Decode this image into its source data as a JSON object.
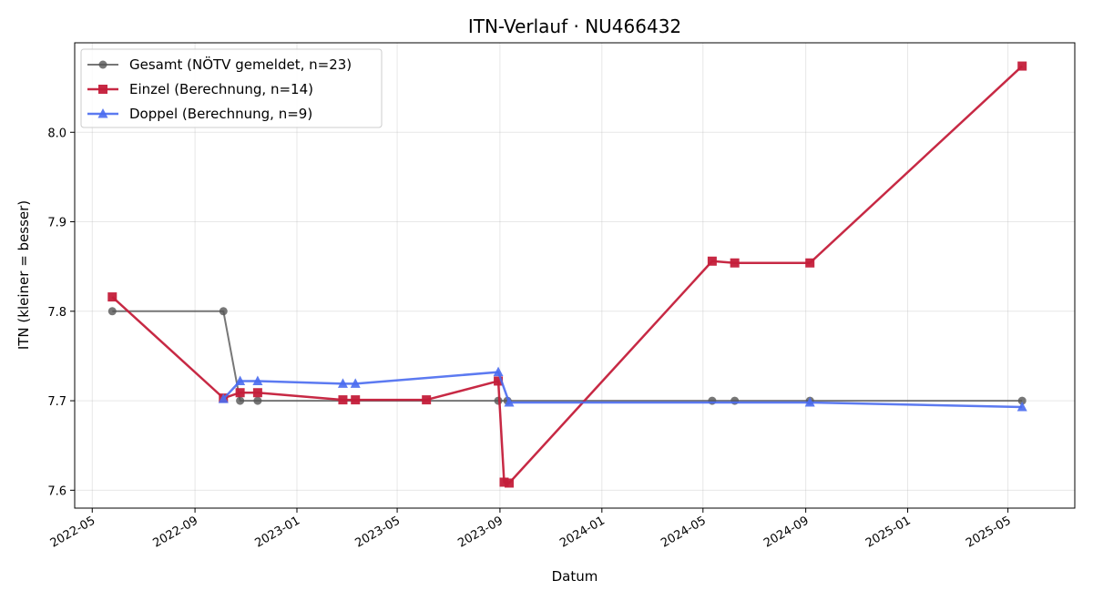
{
  "chart_data": {
    "type": "line",
    "title": "ITN-Verlauf · NU466432",
    "xlabel": "Datum",
    "ylabel": "ITN  (kleiner = besser)",
    "x_type": "date",
    "xlim": [
      "2022-04-10",
      "2025-07-20"
    ],
    "ylim": [
      7.58,
      8.1
    ],
    "x_ticks": [
      {
        "date": "2022-05-01",
        "label": "2022-05"
      },
      {
        "date": "2022-09-01",
        "label": "2022-09"
      },
      {
        "date": "2023-01-01",
        "label": "2023-01"
      },
      {
        "date": "2023-05-01",
        "label": "2023-05"
      },
      {
        "date": "2023-09-01",
        "label": "2023-09"
      },
      {
        "date": "2024-01-01",
        "label": "2024-01"
      },
      {
        "date": "2024-05-01",
        "label": "2024-05"
      },
      {
        "date": "2024-09-01",
        "label": "2024-09"
      },
      {
        "date": "2025-01-01",
        "label": "2025-01"
      },
      {
        "date": "2025-05-01",
        "label": "2025-05"
      }
    ],
    "y_ticks": [
      {
        "value": 7.6,
        "label": "7.6"
      },
      {
        "value": 7.7,
        "label": "7.7"
      },
      {
        "value": 7.8,
        "label": "7.8"
      },
      {
        "value": 7.9,
        "label": "7.9"
      },
      {
        "value": 8.0,
        "label": "8.0"
      }
    ],
    "grid": true,
    "legend_position": "top-left",
    "series": [
      {
        "name": "Gesamt (NÖTV gemeldet, n=23)",
        "color": "#555555",
        "marker": "circle",
        "points": [
          {
            "x": "2022-05-25",
            "y": 7.8
          },
          {
            "x": "2022-10-05",
            "y": 7.8
          },
          {
            "x": "2022-10-25",
            "y": 7.7
          },
          {
            "x": "2022-11-15",
            "y": 7.7
          },
          {
            "x": "2023-08-30",
            "y": 7.7
          },
          {
            "x": "2023-09-10",
            "y": 7.7
          },
          {
            "x": "2024-05-12",
            "y": 7.7
          },
          {
            "x": "2024-06-08",
            "y": 7.7
          },
          {
            "x": "2024-09-06",
            "y": 7.7
          },
          {
            "x": "2025-05-18",
            "y": 7.7
          }
        ]
      },
      {
        "name": "Einzel (Berechnung, n=14)",
        "color": "#c41e3a",
        "marker": "square",
        "points": [
          {
            "x": "2022-05-25",
            "y": 7.816
          },
          {
            "x": "2022-10-05",
            "y": 7.703
          },
          {
            "x": "2022-10-25",
            "y": 7.709
          },
          {
            "x": "2022-11-15",
            "y": 7.709
          },
          {
            "x": "2023-02-25",
            "y": 7.701
          },
          {
            "x": "2023-03-12",
            "y": 7.701
          },
          {
            "x": "2023-06-05",
            "y": 7.701
          },
          {
            "x": "2023-08-30",
            "y": 7.722
          },
          {
            "x": "2023-09-06",
            "y": 7.609
          },
          {
            "x": "2023-09-12",
            "y": 7.608
          },
          {
            "x": "2024-05-12",
            "y": 7.856
          },
          {
            "x": "2024-06-08",
            "y": 7.854
          },
          {
            "x": "2024-09-06",
            "y": 7.854
          },
          {
            "x": "2025-05-18",
            "y": 8.074
          }
        ]
      },
      {
        "name": "Doppel (Berechnung, n=9)",
        "color": "#4a6cf0",
        "marker": "triangle",
        "points": [
          {
            "x": "2022-10-05",
            "y": 7.702
          },
          {
            "x": "2022-10-25",
            "y": 7.722
          },
          {
            "x": "2022-11-15",
            "y": 7.722
          },
          {
            "x": "2023-02-25",
            "y": 7.719
          },
          {
            "x": "2023-03-12",
            "y": 7.719
          },
          {
            "x": "2023-08-30",
            "y": 7.732
          },
          {
            "x": "2023-09-12",
            "y": 7.698
          },
          {
            "x": "2024-09-06",
            "y": 7.698
          },
          {
            "x": "2025-05-18",
            "y": 7.693
          }
        ]
      }
    ]
  }
}
